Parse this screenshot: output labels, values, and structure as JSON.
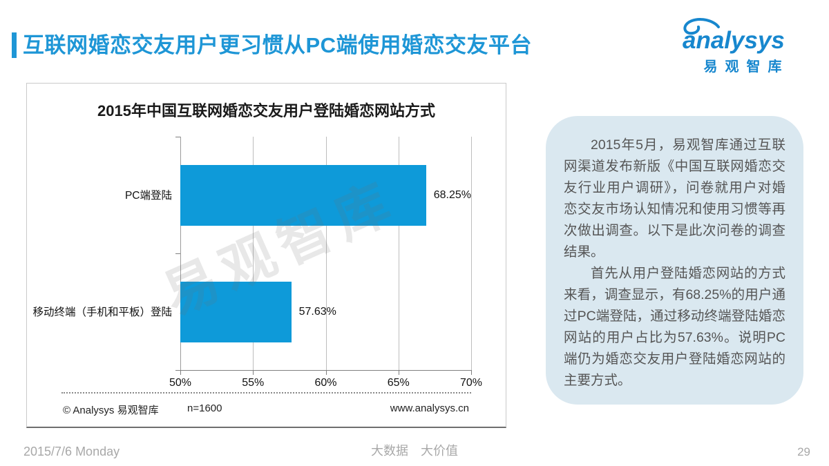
{
  "page": {
    "title": "互联网婚恋交友用户更习惯从PC端使用婚恋交友平台",
    "footer": {
      "date": "2015/7/6 Monday",
      "slogan": "大数据　大价值",
      "page_number": "29"
    }
  },
  "logo": {
    "brand": "analysys",
    "cn": "易观智库"
  },
  "chart": {
    "source": "© Analysys 易观智库",
    "sample_size": "n=1600",
    "website": "www.analysys.cn",
    "watermark": "易观智库"
  },
  "chart_data": {
    "type": "bar",
    "orientation": "horizontal",
    "title": "2015年中国互联网婚恋交友用户登陆婚恋网站方式",
    "categories": [
      "PC端登陆",
      "移动终端（手机和平板）登陆"
    ],
    "values": [
      68.25,
      57.63
    ],
    "value_labels": [
      "68.25%",
      "57.63%"
    ],
    "xlim": [
      50,
      70
    ],
    "x_ticks": [
      "50%",
      "55%",
      "60%",
      "65%",
      "70%"
    ],
    "bar_color": "#0E9AD9",
    "grid": true,
    "legend": "none"
  },
  "sidebar": {
    "paragraphs": [
      "2015年5月，易观智库通过互联网渠道发布新版《中国互联网婚恋交友行业用户调研》，问卷就用户对婚恋交友市场认知情况和使用习惯等再次做出调查。以下是此次问卷的调查结果。",
      "首先从用户登陆婚恋网站的方式来看，调查显示，有68.25%的用户通过PC端登陆，通过移动终端登陆婚恋网站的用户占比为57.63%。说明PC端仍为婚恋交友用户登陆婚恋网站的主要方式。"
    ]
  },
  "colors": {
    "title_blue": "#1E96D6",
    "logo_blue": "#1787CE",
    "bar_blue": "#0E9AD9",
    "sidebar_bg": "#DAE8F0"
  }
}
